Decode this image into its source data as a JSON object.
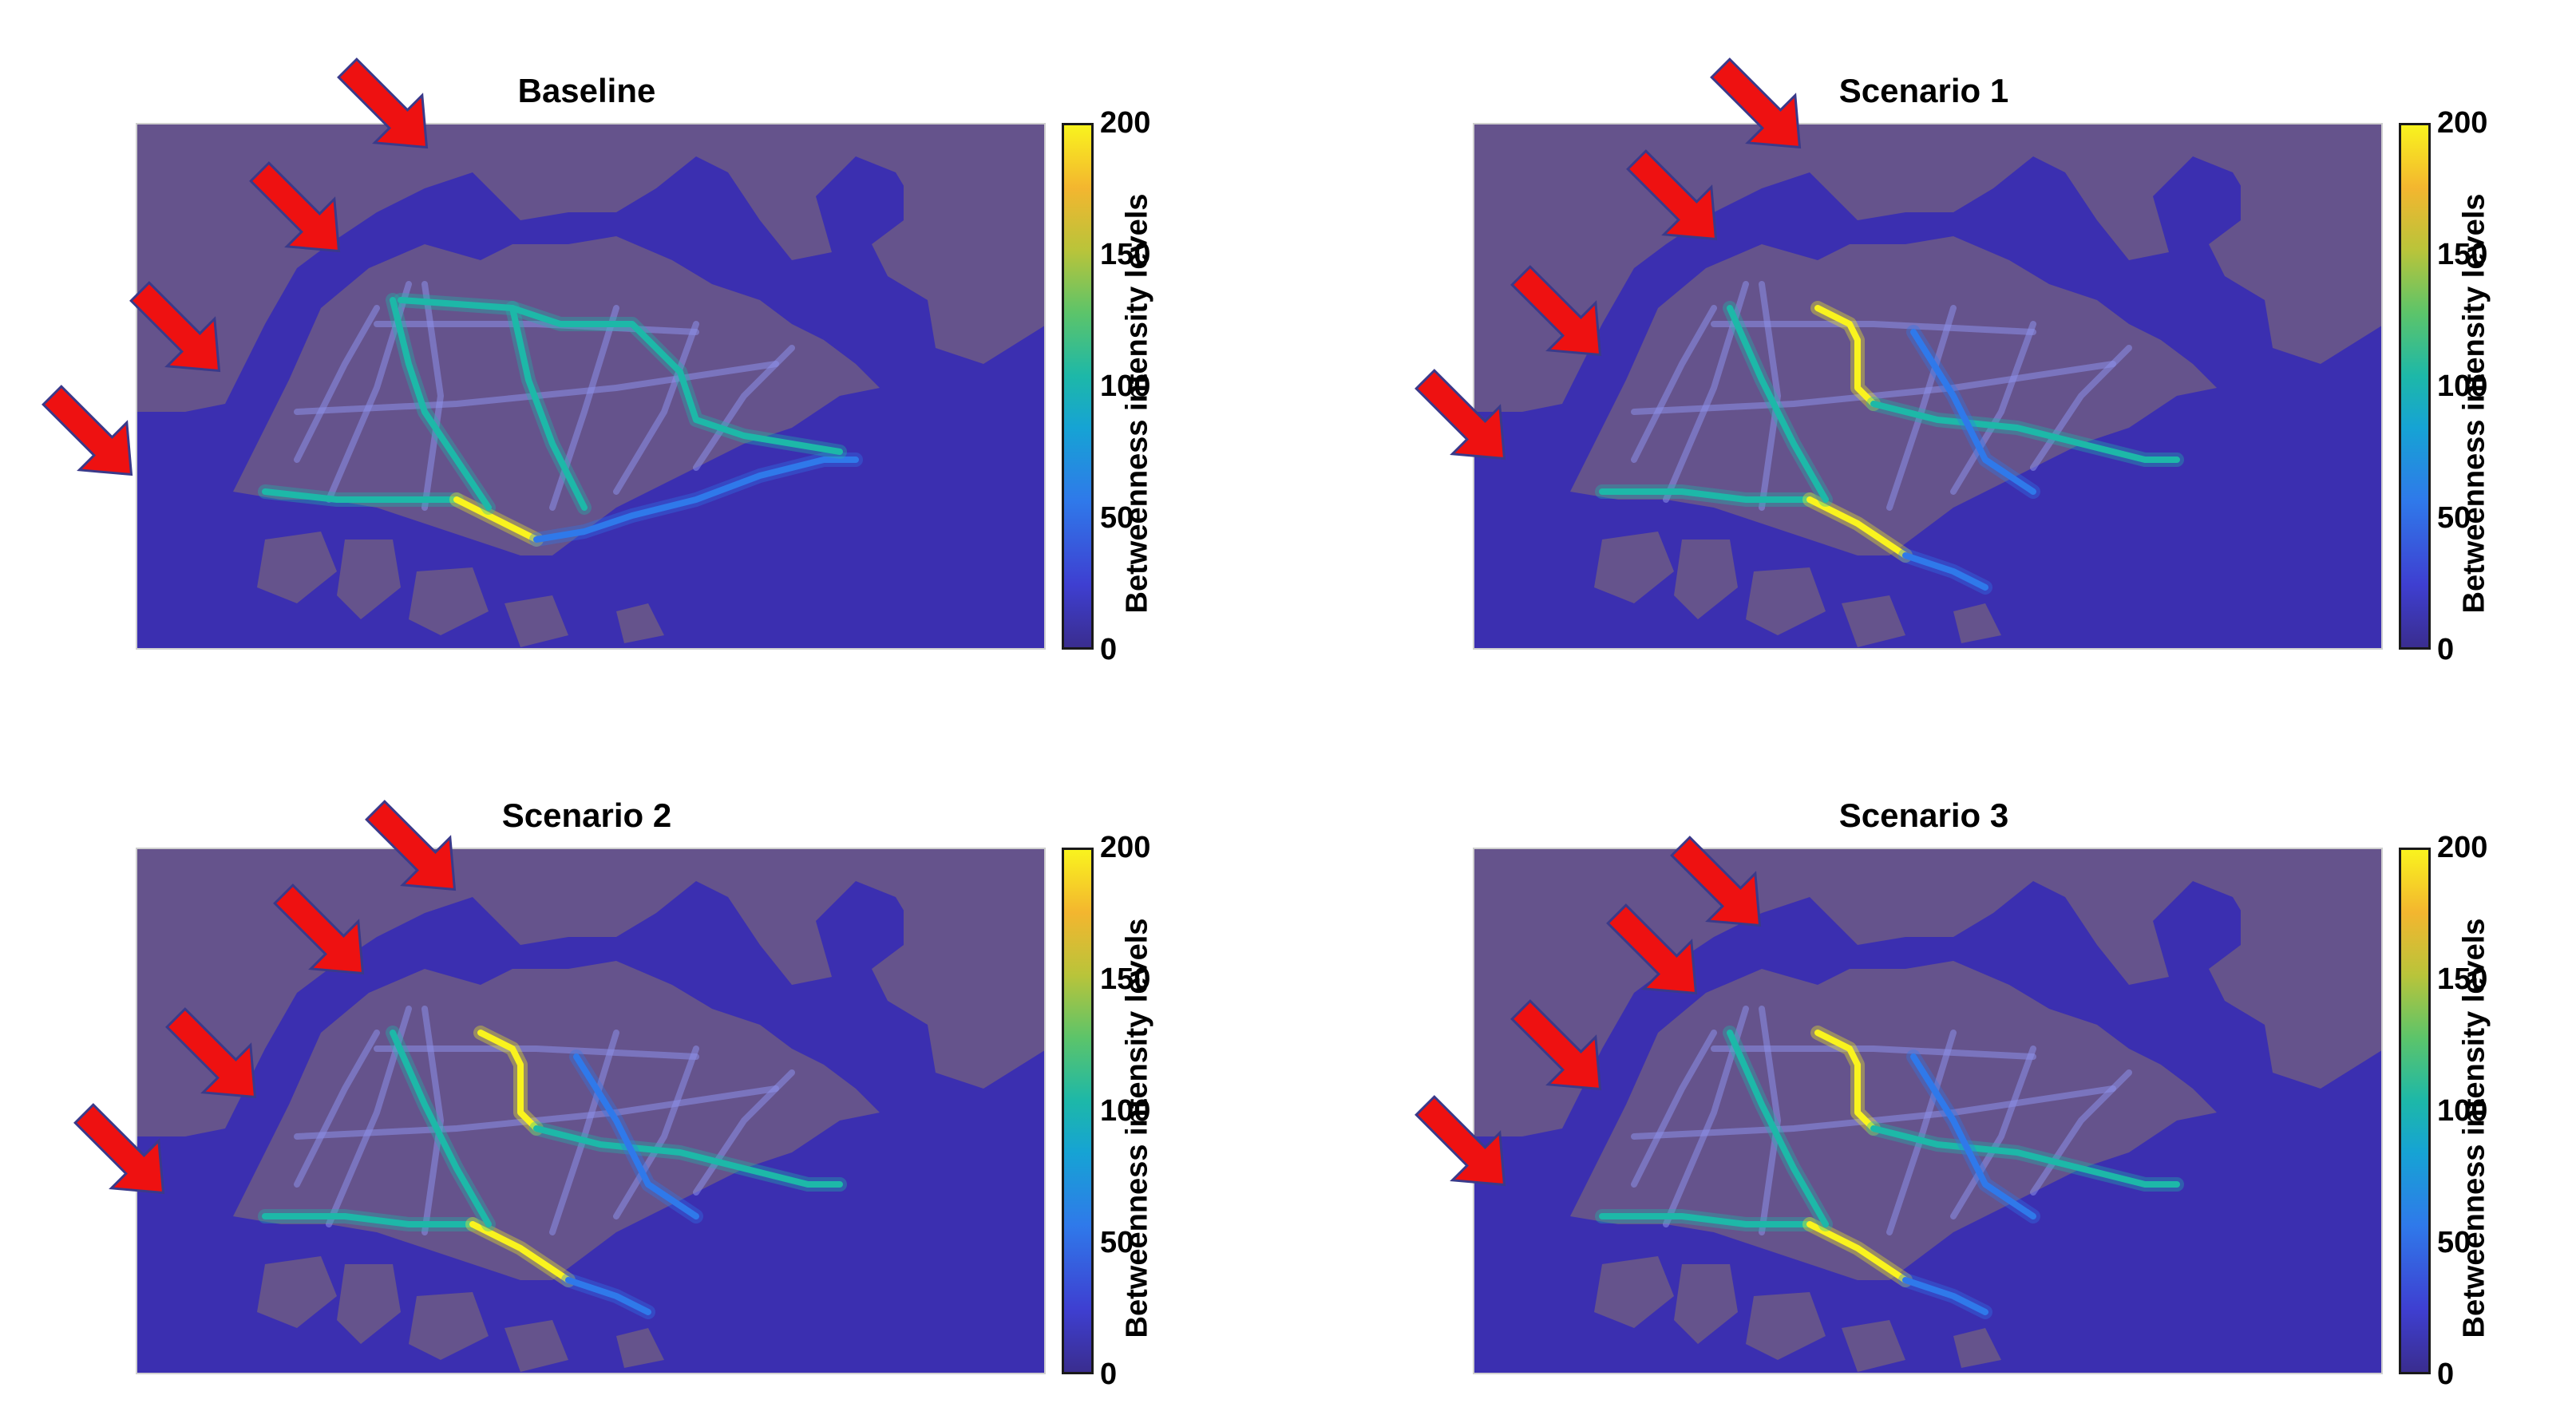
{
  "panels": [
    {
      "id": "baseline",
      "title": "Baseline",
      "route": "baseline"
    },
    {
      "id": "scenario-1",
      "title": "Scenario 1",
      "route": "alt"
    },
    {
      "id": "scenario-2",
      "title": "Scenario 2",
      "route": "alt"
    },
    {
      "id": "scenario-3",
      "title": "Scenario 3",
      "route": "alt"
    }
  ],
  "colorbar": {
    "label": "Betweenness intensity levels",
    "ticks": [
      "200",
      "150",
      "100",
      "50",
      "0"
    ],
    "min": 0,
    "max": 200
  },
  "colors": {
    "water": "#3b2fb0",
    "land": "#65538c",
    "arrow": "#ee1111",
    "arrow_outline": "#3a3a8a",
    "route_low": "#2f79ea",
    "route_mid": "#1db8a8",
    "route_high": "#f9f31e"
  },
  "icons": [
    "arrow-icon"
  ]
}
